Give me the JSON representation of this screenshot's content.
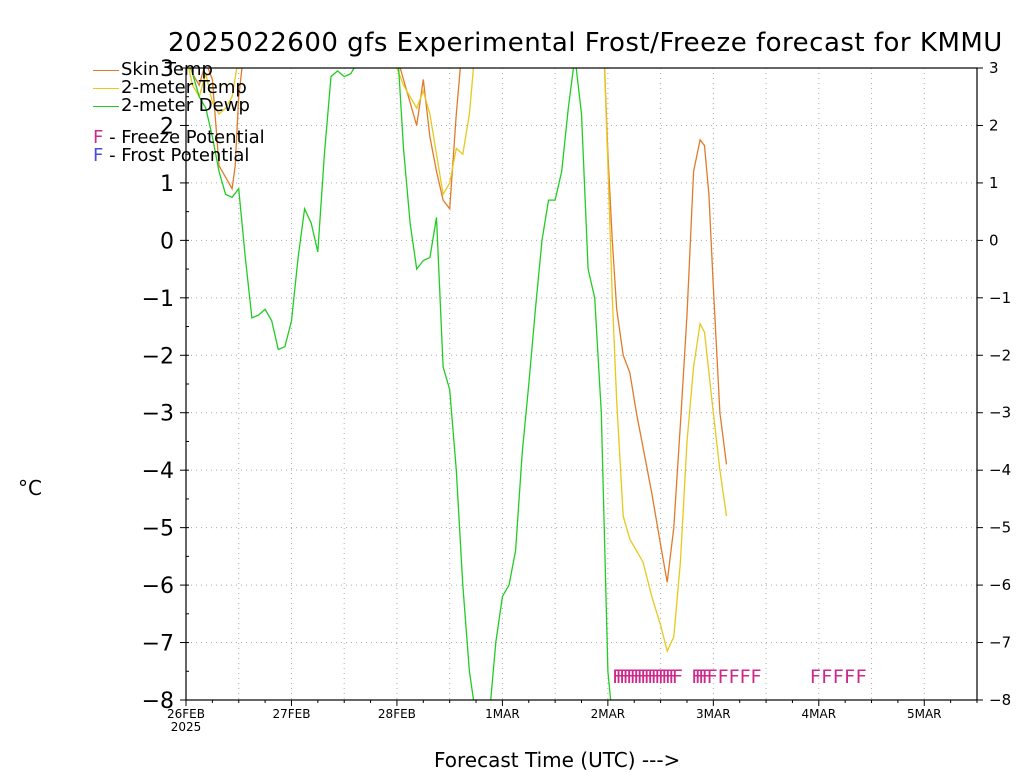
{
  "title": "2025022600 gfs Experimental Frost/Freeze forecast for KMMU",
  "colors": {
    "skin": "#e07b2a",
    "temp": "#e8c81e",
    "dewp": "#22cc22",
    "freeze": "#cc2a8a",
    "frost": "#4a4ae0",
    "grid": "#aaaaaa"
  },
  "legend": {
    "skin_label": "Skin Temp",
    "temp_label": "2-meter Temp",
    "dewp_label": "2-meter Dewp",
    "freeze_letter": "F",
    "freeze_text": "- Freeze Potential",
    "frost_letter": "F",
    "frost_text": "- Frost Potential"
  },
  "chart_data": {
    "type": "line",
    "title": "2025022600 gfs Experimental Frost/Freeze forecast for KMMU",
    "xlabel": "Forecast Time (UTC) --->",
    "ylabel": "°C",
    "ylim": [
      -8,
      3
    ],
    "xlim_hours": [
      0,
      180
    ],
    "grid": true,
    "x_tick_labels": [
      {
        "h": 0,
        "label": "26FEB",
        "sub": "2025"
      },
      {
        "h": 24,
        "label": "27FEB"
      },
      {
        "h": 48,
        "label": "28FEB"
      },
      {
        "h": 72,
        "label": "1MAR"
      },
      {
        "h": 96,
        "label": "2MAR"
      },
      {
        "h": 120,
        "label": "3MAR"
      },
      {
        "h": 144,
        "label": "4MAR"
      },
      {
        "h": 168,
        "label": "5MAR"
      }
    ],
    "y_ticks": [
      3,
      2,
      1,
      0,
      -1,
      -2,
      -3,
      -4,
      -5,
      -6,
      -7,
      -8
    ],
    "series": [
      {
        "name": "Skin Temp",
        "color_key": "skin",
        "points": [
          [
            0,
            3.2
          ],
          [
            1.5,
            2.9
          ],
          [
            3,
            2.7
          ],
          [
            4.5,
            3.1
          ],
          [
            6,
            2.8
          ],
          [
            7.5,
            1.3
          ],
          [
            9,
            1.1
          ],
          [
            10.5,
            0.9
          ],
          [
            11.2,
            1.3
          ],
          [
            12,
            2.5
          ],
          [
            13.5,
            3.5
          ],
          [
            47,
            3.5
          ],
          [
            48,
            3.2
          ],
          [
            49.5,
            2.8
          ],
          [
            51,
            2.4
          ],
          [
            52.5,
            2.0
          ],
          [
            54,
            2.8
          ],
          [
            55.5,
            1.8
          ],
          [
            57,
            1.2
          ],
          [
            58.5,
            0.7
          ],
          [
            60,
            0.55
          ],
          [
            61.5,
            2.2
          ],
          [
            63,
            3.5
          ],
          [
            95,
            3.5
          ],
          [
            96,
            1.5
          ],
          [
            97,
            0
          ],
          [
            98,
            -1.2
          ],
          [
            99.5,
            -2
          ],
          [
            101,
            -2.3
          ],
          [
            102.5,
            -3
          ],
          [
            104,
            -3.6
          ],
          [
            106,
            -4.4
          ],
          [
            108,
            -5.3
          ],
          [
            109.5,
            -5.95
          ],
          [
            111,
            -5
          ],
          [
            112.5,
            -3.2
          ],
          [
            114,
            -1.3
          ],
          [
            115.5,
            1.2
          ],
          [
            117,
            1.75
          ],
          [
            118,
            1.65
          ],
          [
            119,
            0.8
          ],
          [
            120,
            -0.8
          ],
          [
            121.5,
            -3
          ],
          [
            123,
            -3.9
          ]
        ]
      },
      {
        "name": "2-meter Temp",
        "color_key": "temp",
        "points": [
          [
            0,
            3.2
          ],
          [
            1.5,
            2.7
          ],
          [
            3,
            2.5
          ],
          [
            4.5,
            2.9
          ],
          [
            6,
            2.4
          ],
          [
            7.5,
            2.2
          ],
          [
            9,
            2.3
          ],
          [
            10.5,
            2.5
          ],
          [
            12,
            3.2
          ],
          [
            13.5,
            3.5
          ],
          [
            47,
            3.5
          ],
          [
            48,
            3.0
          ],
          [
            49.5,
            2.7
          ],
          [
            51,
            2.5
          ],
          [
            52.5,
            2.3
          ],
          [
            54,
            2.6
          ],
          [
            55.5,
            2.2
          ],
          [
            57,
            1.5
          ],
          [
            58.5,
            0.8
          ],
          [
            60,
            1.0
          ],
          [
            61.5,
            1.6
          ],
          [
            63,
            1.5
          ],
          [
            64.5,
            2.2
          ],
          [
            66,
            3.5
          ],
          [
            95,
            3.5
          ],
          [
            96,
            1.3
          ],
          [
            97,
            -1
          ],
          [
            98,
            -2.8
          ],
          [
            99.5,
            -4.8
          ],
          [
            101,
            -5.2
          ],
          [
            102.5,
            -5.4
          ],
          [
            104,
            -5.6
          ],
          [
            106,
            -6.2
          ],
          [
            108,
            -6.7
          ],
          [
            109.5,
            -7.15
          ],
          [
            111,
            -6.9
          ],
          [
            112.5,
            -5.6
          ],
          [
            114,
            -3.5
          ],
          [
            115.5,
            -2.2
          ],
          [
            117,
            -1.45
          ],
          [
            118,
            -1.6
          ],
          [
            119,
            -2.3
          ],
          [
            120,
            -3
          ],
          [
            121.5,
            -4
          ],
          [
            123,
            -4.8
          ]
        ]
      },
      {
        "name": "2-meter Dewp",
        "color_key": "dewp",
        "points": [
          [
            0,
            3.5
          ],
          [
            1.5,
            2.9
          ],
          [
            3,
            2.5
          ],
          [
            4.5,
            2.3
          ],
          [
            6,
            1.8
          ],
          [
            7.5,
            1.2
          ],
          [
            9,
            0.8
          ],
          [
            10.5,
            0.75
          ],
          [
            12,
            0.9
          ],
          [
            13.5,
            -0.3
          ],
          [
            15,
            -1.35
          ],
          [
            16.5,
            -1.3
          ],
          [
            18,
            -1.2
          ],
          [
            19.5,
            -1.4
          ],
          [
            21,
            -1.9
          ],
          [
            22.5,
            -1.85
          ],
          [
            24,
            -1.4
          ],
          [
            25.5,
            -0.3
          ],
          [
            27,
            0.55
          ],
          [
            28.5,
            0.3
          ],
          [
            30,
            -0.2
          ],
          [
            31.5,
            1.5
          ],
          [
            33,
            2.85
          ],
          [
            34.5,
            2.95
          ],
          [
            36,
            2.85
          ],
          [
            37.5,
            2.9
          ],
          [
            39,
            3.1
          ],
          [
            40.5,
            3.5
          ],
          [
            48,
            3.5
          ],
          [
            49.5,
            1.6
          ],
          [
            51,
            0.3
          ],
          [
            52.5,
            -0.5
          ],
          [
            54,
            -0.35
          ],
          [
            55.5,
            -0.3
          ],
          [
            57,
            0.4
          ],
          [
            58.5,
            -2.2
          ],
          [
            60,
            -2.6
          ],
          [
            61.5,
            -4
          ],
          [
            63,
            -6
          ],
          [
            64.5,
            -7.5
          ],
          [
            66,
            -8.3
          ],
          [
            69,
            -8.3
          ],
          [
            70.5,
            -7
          ],
          [
            72,
            -6.2
          ],
          [
            73.5,
            -6
          ],
          [
            75,
            -5.4
          ],
          [
            76.5,
            -3.7
          ],
          [
            78,
            -2.5
          ],
          [
            79.5,
            -1.2
          ],
          [
            81,
            0
          ],
          [
            82.5,
            0.7
          ],
          [
            84,
            0.7
          ],
          [
            85.5,
            1.2
          ],
          [
            87,
            2.3
          ],
          [
            88.5,
            3.2
          ],
          [
            90,
            2.2
          ],
          [
            91.5,
            -0.5
          ],
          [
            93,
            -1
          ],
          [
            94.5,
            -3
          ],
          [
            96,
            -7.5
          ],
          [
            97,
            -8.3
          ]
        ]
      }
    ],
    "freeze_flags": [
      {
        "h": 97.0,
        "dense": true
      },
      {
        "h": 97.8,
        "dense": true
      },
      {
        "h": 98.6,
        "dense": true
      },
      {
        "h": 99.4,
        "dense": true
      },
      {
        "h": 100.2,
        "dense": true
      },
      {
        "h": 101.0,
        "dense": true
      },
      {
        "h": 101.8,
        "dense": true
      },
      {
        "h": 102.6,
        "dense": true
      },
      {
        "h": 103.4,
        "dense": true
      },
      {
        "h": 104.2,
        "dense": true
      },
      {
        "h": 105.0,
        "dense": true
      },
      {
        "h": 105.8,
        "dense": true
      },
      {
        "h": 106.6,
        "dense": true
      },
      {
        "h": 107.4,
        "dense": true
      },
      {
        "h": 108.2,
        "dense": true
      },
      {
        "h": 109.0,
        "dense": true
      },
      {
        "h": 109.8,
        "dense": true
      },
      {
        "h": 110.6,
        "dense": true
      },
      {
        "h": 115.0,
        "dense": true
      },
      {
        "h": 115.8,
        "dense": true
      },
      {
        "h": 116.6,
        "dense": true
      },
      {
        "h": 117.4,
        "dense": true
      },
      {
        "h": 118.5,
        "dense": false
      },
      {
        "h": 121.0,
        "dense": false
      },
      {
        "h": 123.5,
        "dense": false
      },
      {
        "h": 126.0,
        "dense": false
      },
      {
        "h": 128.5,
        "dense": false
      },
      {
        "h": 142.0,
        "dense": false
      },
      {
        "h": 144.6,
        "dense": false
      },
      {
        "h": 147.2,
        "dense": false
      },
      {
        "h": 149.8,
        "dense": false
      },
      {
        "h": 152.4,
        "dense": false
      }
    ],
    "freeze_y": -7.55,
    "flag_letter": "F"
  }
}
